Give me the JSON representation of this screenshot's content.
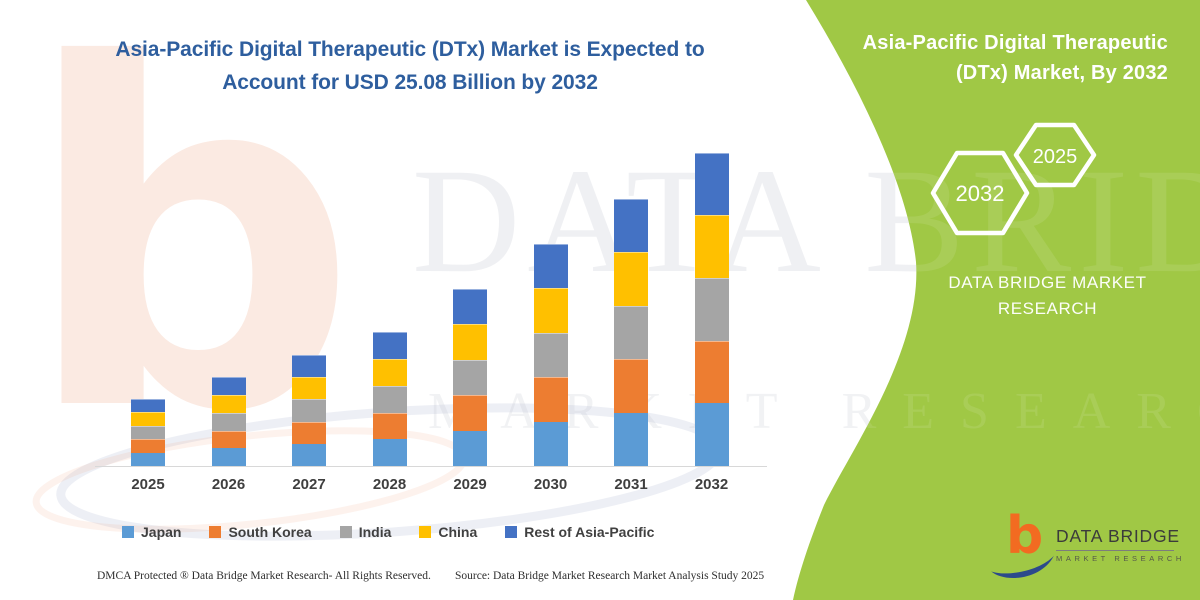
{
  "page": {
    "background": "#ffffff",
    "accent_green": "#A0C845"
  },
  "chart": {
    "title_line1": "Asia-Pacific Digital Therapeutic (DTx) Market is Expected to",
    "title_line2": "Account for USD 25.08 Billion by 2032",
    "title_color": "#2E5E9E"
  },
  "chart_data": {
    "type": "bar",
    "stacked": true,
    "title": "Asia-Pacific Digital Therapeutic (DTx) Market is Expected to Account for USD 25.08 Billion by 2032",
    "unit": "USD Billion",
    "categories": [
      "2025",
      "2026",
      "2027",
      "2028",
      "2029",
      "2030",
      "2031",
      "2032"
    ],
    "series": [
      {
        "name": "Japan",
        "color": "#5B9BD5",
        "values": [
          1.08,
          1.42,
          1.78,
          2.14,
          2.84,
          3.56,
          4.28,
          5.02
        ]
      },
      {
        "name": "South Korea",
        "color": "#ED7D31",
        "values": [
          1.08,
          1.42,
          1.78,
          2.14,
          2.84,
          3.56,
          4.28,
          5.02
        ]
      },
      {
        "name": "India",
        "color": "#A5A5A5",
        "values": [
          1.08,
          1.42,
          1.78,
          2.14,
          2.84,
          3.56,
          4.28,
          5.02
        ]
      },
      {
        "name": "China",
        "color": "#FFC000",
        "values": [
          1.08,
          1.42,
          1.78,
          2.14,
          2.84,
          3.56,
          4.28,
          5.02
        ]
      },
      {
        "name": "Rest of Asia-Pacific",
        "color": "#4472C4",
        "values": [
          1.08,
          1.42,
          1.78,
          2.14,
          2.84,
          3.56,
          4.28,
          5.02
        ]
      }
    ],
    "totals_estimated": [
      5.4,
      7.1,
      8.9,
      10.7,
      14.2,
      17.8,
      21.4,
      25.08
    ],
    "annotation": "USD 25.08 Billion by 2032",
    "xlabel": "",
    "ylabel": "",
    "ylim": [
      0,
      26
    ],
    "gridlines": false,
    "legend_position": "bottom"
  },
  "panel": {
    "title_line1": "Asia-Pacific Digital Therapeutic",
    "title_line2": "(DTx) Market, By 2032",
    "hexagon_big": "2032",
    "hexagon_small": "2025",
    "brand_line1": "DATA BRIDGE MARKET",
    "brand_line2": "RESEARCH"
  },
  "logo": {
    "name": "DATA BRIDGE",
    "subtitle": "MARKET RESEARCH",
    "b_color": "#F26B21",
    "swoosh_color": "#2C4A8B"
  },
  "watermark": {
    "logo_glyph": "b",
    "text_line1": "DATA BRIDGE",
    "text_line2": "MARKET RESEARCH"
  },
  "footer": {
    "left": "DMCA Protected ® Data Bridge Market Research-  All Rights Reserved.",
    "source": "Source: Data Bridge Market Research  Market Analysis Study 2025"
  }
}
